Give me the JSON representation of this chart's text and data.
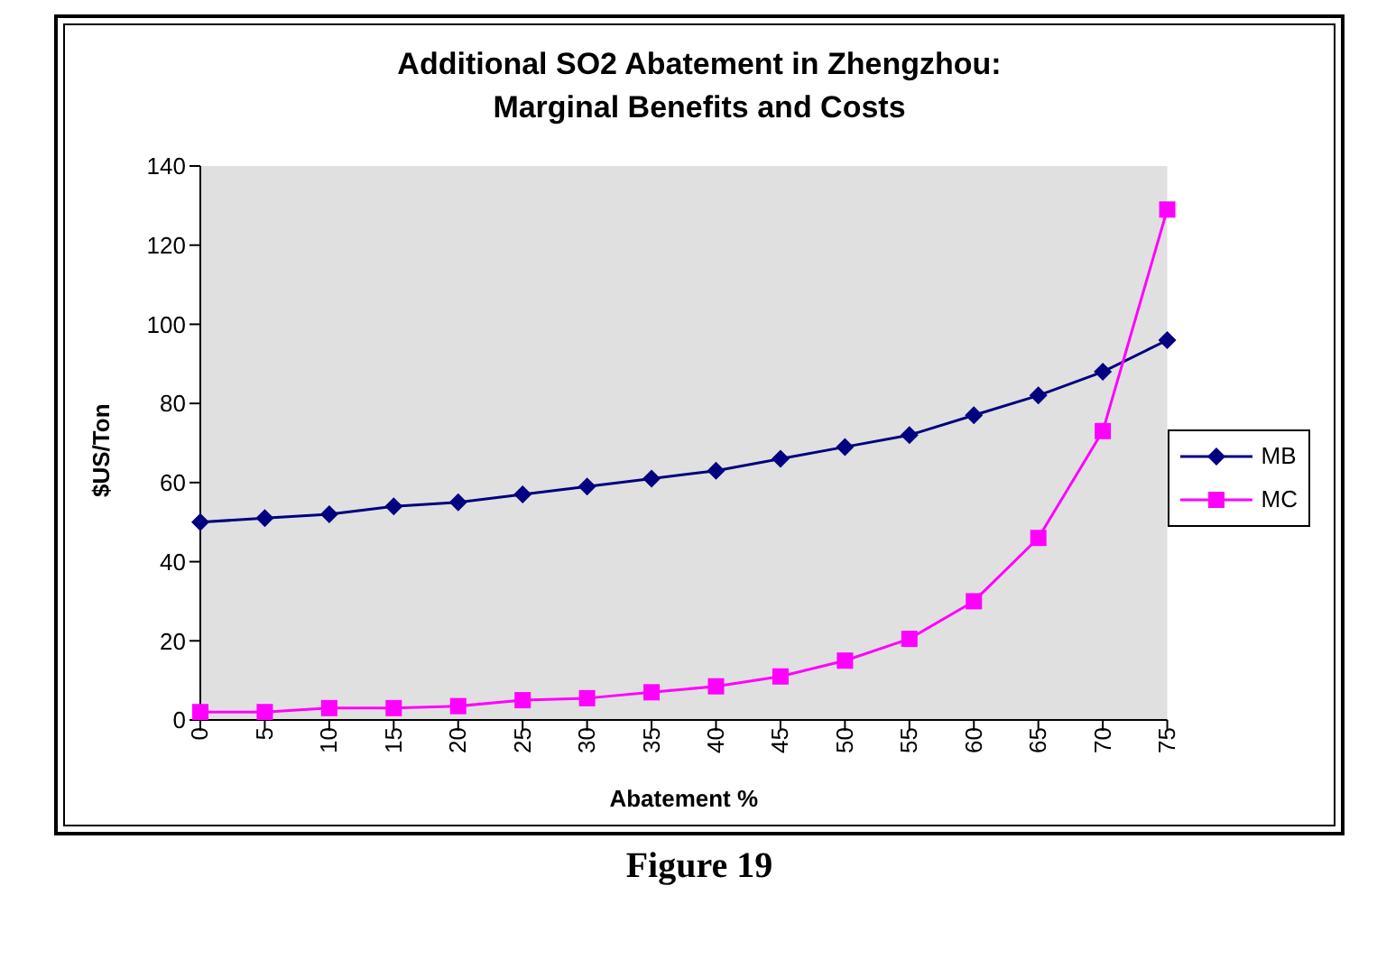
{
  "chart_data": {
    "type": "line",
    "title": "Additional SO2 Abatement in Zhengzhou:\nMarginal Benefits and Costs",
    "xlabel": "Abatement %",
    "ylabel": "$US/Ton",
    "categories": [
      "0",
      "5",
      "10",
      "15",
      "20",
      "25",
      "30",
      "35",
      "40",
      "45",
      "50",
      "55",
      "60",
      "65",
      "70",
      "75"
    ],
    "series": [
      {
        "name": "MB",
        "color": "#000080",
        "marker": "diamond",
        "values": [
          50,
          51,
          52,
          54,
          55,
          57,
          59,
          61,
          63,
          66,
          69,
          72,
          77,
          82,
          88,
          96
        ]
      },
      {
        "name": "MC",
        "color": "#ff00ff",
        "marker": "square",
        "values": [
          2,
          2,
          3,
          3,
          3.5,
          5,
          5.5,
          7,
          8.5,
          11,
          15,
          20.5,
          30,
          46,
          73,
          129
        ]
      }
    ],
    "ylim": [
      0,
      140
    ],
    "yticks": [
      0,
      20,
      40,
      60,
      80,
      100,
      120,
      140
    ],
    "grid": false,
    "legend": "right",
    "annotations": [
      "Figure 19"
    ]
  }
}
